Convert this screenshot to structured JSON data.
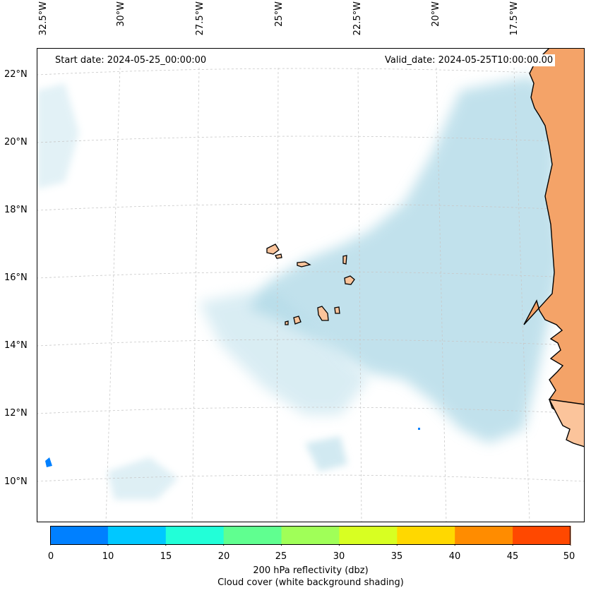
{
  "map": {
    "longitude_labels": [
      "32.5°W",
      "30°W",
      "27.5°W",
      "25°W",
      "22.5°W",
      "20°W",
      "17.5°W"
    ],
    "latitude_labels": [
      "22°N",
      "20°N",
      "18°N",
      "16°N",
      "14°N",
      "12°N",
      "10°N"
    ],
    "start_date": "Start date: 2024-05-25_00:00:00",
    "valid_date": "Valid_date: 2024-05-25T10:00:00.00",
    "colors": {
      "cloud": "#add8e6",
      "land": "#f4a368",
      "island": "#fbc49b",
      "coast": "#000000"
    }
  },
  "colorbar": {
    "tick_labels": [
      "0",
      "10",
      "15",
      "20",
      "25",
      "30",
      "35",
      "40",
      "45",
      "50"
    ],
    "colors": [
      "#0080ff",
      "#00c8ff",
      "#22ffd8",
      "#60ff90",
      "#a0ff58",
      "#d8ff22",
      "#ffd800",
      "#ff8c00",
      "#ff4800"
    ],
    "label_line1": "200 hPa reflectivity (dbz)",
    "label_line2": "Cloud cover (white background shading)"
  }
}
